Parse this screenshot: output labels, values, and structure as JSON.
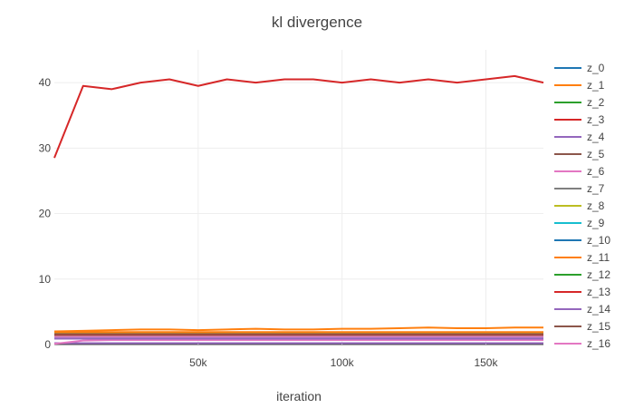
{
  "chart_data": {
    "type": "line",
    "title": "kl divergence",
    "xlabel": "iteration",
    "ylabel": "",
    "xlim": [
      0,
      170000
    ],
    "ylim": [
      0,
      45
    ],
    "x_ticks": [
      50000,
      100000,
      150000
    ],
    "x_tick_labels": [
      "50k",
      "100k",
      "150k"
    ],
    "y_ticks": [
      0,
      10,
      20,
      30,
      40
    ],
    "y_tick_labels": [
      "0",
      "10",
      "20",
      "30",
      "40"
    ],
    "grid": true,
    "legend_position": "right",
    "x": [
      0,
      10000,
      20000,
      30000,
      40000,
      50000,
      60000,
      70000,
      80000,
      90000,
      100000,
      110000,
      120000,
      130000,
      140000,
      150000,
      160000,
      170000
    ],
    "series": [
      {
        "name": "z_0",
        "color": "#1f77b4",
        "values": [
          1.8,
          1.8,
          1.8,
          1.8,
          1.8,
          1.8,
          1.8,
          1.8,
          1.8,
          1.8,
          1.8,
          1.8,
          1.8,
          1.8,
          1.8,
          1.8,
          1.8,
          1.8
        ]
      },
      {
        "name": "z_1",
        "color": "#ff7f0e",
        "values": [
          2.0,
          2.1,
          2.2,
          2.3,
          2.3,
          2.2,
          2.3,
          2.4,
          2.3,
          2.3,
          2.4,
          2.4,
          2.5,
          2.6,
          2.5,
          2.5,
          2.6,
          2.6
        ]
      },
      {
        "name": "z_2",
        "color": "#2ca02c",
        "values": [
          1.6,
          1.5,
          1.6,
          1.5,
          1.6,
          1.5,
          1.6,
          1.5,
          1.6,
          1.5,
          1.6,
          1.5,
          1.6,
          1.5,
          1.6,
          1.5,
          1.6,
          1.5
        ]
      },
      {
        "name": "z_3",
        "color": "#d62728",
        "values": [
          28.5,
          39.5,
          39.0,
          40.0,
          40.5,
          39.5,
          40.5,
          40.0,
          40.5,
          40.5,
          40.0,
          40.5,
          40.0,
          40.5,
          40.0,
          40.5,
          41.0,
          40.0
        ]
      },
      {
        "name": "z_4",
        "color": "#9467bd",
        "values": [
          0.2,
          0.2,
          0.2,
          0.2,
          0.2,
          0.2,
          0.2,
          0.2,
          0.2,
          0.2,
          0.2,
          0.2,
          0.2,
          0.2,
          0.2,
          0.2,
          0.2,
          0.2
        ]
      },
      {
        "name": "z_5",
        "color": "#8c564b",
        "values": [
          1.2,
          1.3,
          1.2,
          1.3,
          1.2,
          1.3,
          1.2,
          1.3,
          1.2,
          1.3,
          1.2,
          1.3,
          1.2,
          1.3,
          1.2,
          1.3,
          1.2,
          1.3
        ]
      },
      {
        "name": "z_6",
        "color": "#e377c2",
        "values": [
          0.1,
          0.6,
          0.7,
          0.7,
          0.7,
          0.7,
          0.7,
          0.7,
          0.7,
          0.7,
          0.7,
          0.7,
          0.7,
          0.7,
          0.7,
          0.7,
          0.7,
          0.7
        ]
      },
      {
        "name": "z_7",
        "color": "#7f7f7f",
        "values": [
          1.0,
          1.0,
          1.0,
          1.0,
          1.0,
          1.0,
          1.0,
          1.0,
          1.0,
          1.0,
          1.0,
          1.0,
          1.0,
          1.0,
          1.0,
          1.0,
          1.0,
          1.0
        ]
      },
      {
        "name": "z_8",
        "color": "#bcbd22",
        "values": [
          1.7,
          1.7,
          1.7,
          1.7,
          1.7,
          1.7,
          1.7,
          1.7,
          1.7,
          1.7,
          1.7,
          1.7,
          1.7,
          1.7,
          1.7,
          1.7,
          1.7,
          1.7
        ]
      },
      {
        "name": "z_9",
        "color": "#17becf",
        "values": [
          1.1,
          1.1,
          1.1,
          1.1,
          1.1,
          1.1,
          1.1,
          1.1,
          1.1,
          1.1,
          1.1,
          1.1,
          1.1,
          1.1,
          1.1,
          1.1,
          1.1,
          1.1
        ]
      },
      {
        "name": "z_10",
        "color": "#1f77b4",
        "values": [
          1.4,
          1.4,
          1.4,
          1.4,
          1.4,
          1.4,
          1.4,
          1.4,
          1.4,
          1.4,
          1.4,
          1.4,
          1.4,
          1.4,
          1.4,
          1.4,
          1.4,
          1.4
        ]
      },
      {
        "name": "z_11",
        "color": "#ff7f0e",
        "values": [
          1.9,
          1.9,
          1.9,
          1.9,
          1.9,
          1.9,
          1.9,
          1.9,
          1.9,
          1.9,
          1.9,
          1.9,
          1.9,
          1.9,
          1.9,
          1.9,
          1.9,
          1.9
        ]
      },
      {
        "name": "z_12",
        "color": "#2ca02c",
        "values": [
          1.3,
          1.3,
          1.3,
          1.3,
          1.3,
          1.3,
          1.3,
          1.3,
          1.3,
          1.3,
          1.3,
          1.3,
          1.3,
          1.3,
          1.3,
          1.3,
          1.3,
          1.3
        ]
      },
      {
        "name": "z_13",
        "color": "#d62728",
        "values": [
          1.5,
          1.5,
          1.5,
          1.5,
          1.5,
          1.5,
          1.5,
          1.5,
          1.5,
          1.5,
          1.5,
          1.5,
          1.5,
          1.5,
          1.5,
          1.5,
          1.5,
          1.5
        ]
      },
      {
        "name": "z_14",
        "color": "#9467bd",
        "values": [
          0.9,
          0.9,
          0.9,
          0.9,
          0.9,
          0.9,
          0.9,
          0.9,
          0.9,
          0.9,
          0.9,
          0.9,
          0.9,
          0.9,
          0.9,
          0.9,
          0.9,
          0.9
        ]
      },
      {
        "name": "z_15",
        "color": "#8c564b",
        "values": [
          1.6,
          1.6,
          1.6,
          1.6,
          1.6,
          1.6,
          1.6,
          1.6,
          1.6,
          1.6,
          1.6,
          1.6,
          1.6,
          1.6,
          1.6,
          1.6,
          1.6,
          1.6
        ]
      },
      {
        "name": "z_16",
        "color": "#e377c2",
        "values": [
          1.2,
          1.2,
          1.2,
          1.2,
          1.2,
          1.2,
          1.2,
          1.2,
          1.2,
          1.2,
          1.2,
          1.2,
          1.2,
          1.2,
          1.2,
          1.2,
          1.2,
          1.2
        ]
      }
    ]
  }
}
